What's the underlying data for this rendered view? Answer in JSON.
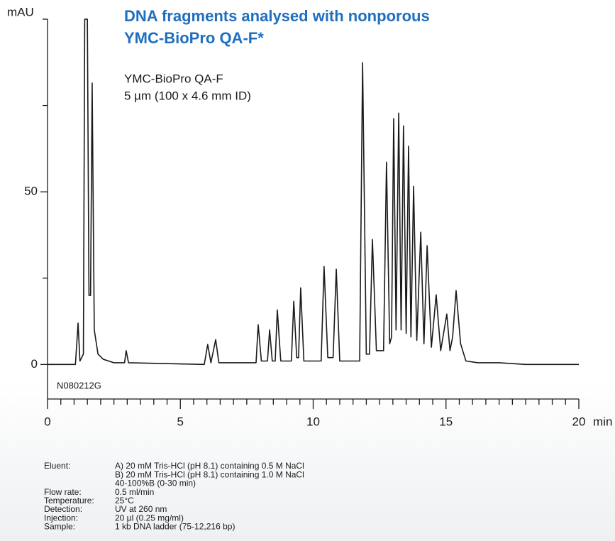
{
  "chart_data": {
    "type": "line",
    "title": [
      "DNA fragments analysed with nonporous",
      "YMC-BioPro QA-F*"
    ],
    "subtitle": [
      "YMC-BioPro QA-F",
      "5 µm  (100 x 4.6 mm ID)"
    ],
    "y_label": "mAU",
    "x_label": "min",
    "annotation": "N080212G",
    "xlim": [
      0,
      20
    ],
    "ylim": [
      -10,
      100
    ],
    "xticks": [
      0,
      5,
      10,
      15,
      20
    ],
    "xminor_ticks": [
      0.5,
      1,
      1.5,
      2,
      2.5,
      3,
      3.5,
      4,
      4.5,
      5.5,
      6,
      6.5,
      7,
      7.5,
      8,
      8.5,
      9,
      9.5,
      10.5,
      11,
      11.5,
      12,
      12.5,
      13,
      13.5,
      14,
      14.5,
      15.5,
      16,
      16.5,
      17,
      17.5,
      18,
      18.5,
      19,
      19.5
    ],
    "yticks": [
      0,
      50
    ],
    "yminor_ticks": [
      25,
      75,
      100
    ],
    "x": [
      0,
      1.05,
      1.15,
      1.22,
      1.35,
      1.4,
      1.5,
      1.56,
      1.62,
      1.68,
      1.76,
      1.9,
      2.1,
      2.5,
      2.9,
      2.96,
      3.05,
      5.9,
      6.03,
      6.15,
      6.33,
      6.45,
      7.85,
      7.93,
      8.05,
      8.28,
      8.36,
      8.46,
      8.57,
      8.65,
      8.78,
      9.18,
      9.27,
      9.38,
      9.45,
      9.53,
      9.65,
      10.3,
      10.41,
      10.55,
      10.75,
      10.87,
      11.0,
      11.75,
      11.86,
      12.0,
      12.12,
      12.23,
      12.38,
      12.65,
      12.76,
      12.88,
      12.95,
      13.03,
      13.12,
      13.22,
      13.31,
      13.4,
      13.5,
      13.59,
      13.68,
      13.78,
      13.9,
      14.05,
      14.17,
      14.29,
      14.45,
      14.63,
      14.8,
      15.03,
      15.15,
      15.25,
      15.38,
      15.55,
      15.75,
      16.2,
      17,
      18,
      20
    ],
    "series": [
      {
        "color": "#1a1a1a",
        "values": [
          0,
          0,
          12,
          1,
          3,
          100,
          100,
          20,
          20,
          81.5,
          10,
          3,
          1.5,
          0.5,
          0.5,
          4,
          0.5,
          0,
          5.8,
          0.5,
          7.2,
          0.5,
          0.5,
          11.5,
          1,
          1,
          10,
          1,
          1,
          15.8,
          1,
          1,
          18.3,
          2,
          2,
          22.2,
          1,
          1,
          28.4,
          2,
          2,
          27.6,
          1,
          1,
          87.4,
          3,
          3,
          36.2,
          4,
          4,
          58.6,
          6,
          8,
          71.2,
          10,
          72.8,
          10,
          69.1,
          9,
          63.2,
          8,
          51.6,
          7,
          38.3,
          6,
          34.4,
          5,
          20.2,
          4,
          14.6,
          4,
          8,
          21.4,
          6,
          1,
          0.5,
          0.5,
          0,
          0
        ]
      }
    ]
  },
  "method": [
    {
      "label": "Eluent:",
      "lines": [
        "A) 20 mM Tris-HCl (pH 8.1) containing 0.5 M NaCl",
        "B) 20 mM Tris-HCl (pH 8.1) containing 1.0 M NaCl",
        "40-100%B (0-30 min)"
      ]
    },
    {
      "label": "Flow rate:",
      "lines": [
        "0.5 ml/min"
      ]
    },
    {
      "label": "Temperature:",
      "lines": [
        "25°C"
      ]
    },
    {
      "label": "Detection:",
      "lines": [
        "UV at 260 nm"
      ]
    },
    {
      "label": "Injection:",
      "lines": [
        "20 µl (0.25 mg/ml)"
      ]
    },
    {
      "label": "Sample:",
      "lines": [
        "1 kb DNA ladder (75-12,216 bp)"
      ]
    }
  ]
}
